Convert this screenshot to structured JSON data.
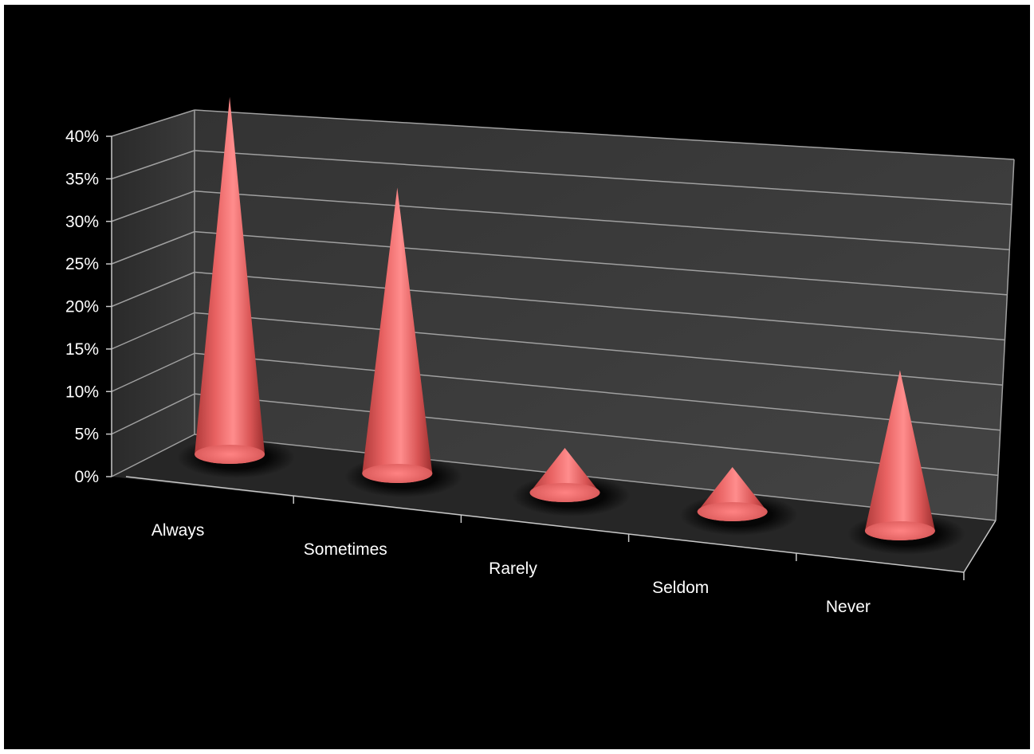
{
  "chart_data": {
    "type": "bar",
    "style": "3d-cone",
    "categories": [
      "Always",
      "Sometimes",
      "Rarely",
      "Seldom",
      "Never"
    ],
    "series": [
      {
        "values": [
          0.4,
          0.32,
          0.05,
          0.05,
          0.18
        ]
      }
    ],
    "yticks": [
      "0%",
      "5%",
      "10%",
      "15%",
      "20%",
      "25%",
      "30%",
      "35%",
      "40%"
    ],
    "ylim": [
      0,
      0.4
    ],
    "grid": true,
    "legend": "none",
    "colors": {
      "background": "#000000",
      "plot_wall": "#3a3a3a",
      "floor": "#262626",
      "gridline": "#a0a0a0",
      "axis_line": "#c8c8c8",
      "text": "#ffffff",
      "cone_light": "#ff8a8a",
      "cone_mid": "#e05a5a",
      "cone_dark": "#a83030"
    }
  }
}
